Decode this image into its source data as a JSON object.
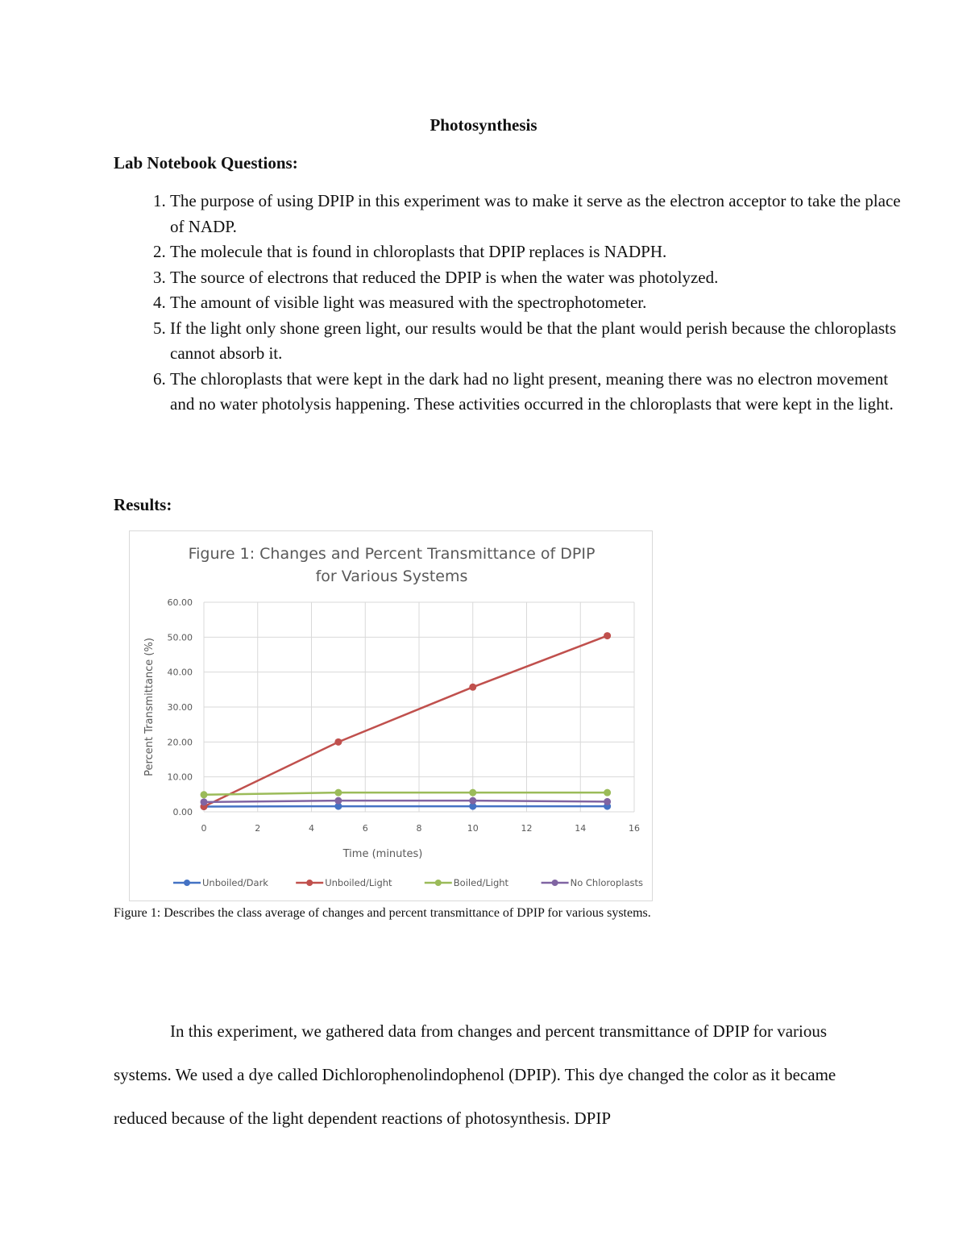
{
  "title": "Photosynthesis",
  "questions_heading": "Lab Notebook Questions:",
  "questions": [
    "The purpose of using DPIP in this experiment was to make it serve as the electron acceptor to take the place of NADP.",
    "The molecule that is found in chloroplasts that DPIP replaces is NADPH.",
    "The source of electrons that reduced the DPIP is when the water was photolyzed.",
    "The amount of visible light was measured with the spectrophotometer.",
    "If the light only shone green light, our results would be that the plant would perish because the chloroplasts cannot absorb it.",
    "The chloroplasts that were kept in the dark had no light present, meaning there was no electron movement and no water photolysis happening. These activities occurred in the chloroplasts that were kept in the light."
  ],
  "results_heading": "Results:",
  "chart_data": {
    "type": "line",
    "title": "Figure 1: Changes and Percent Transmittance of DPIP for Various Systems",
    "title_lines": [
      "Figure 1: Changes and Percent Transmittance of DPIP",
      "for Various Systems"
    ],
    "xlabel": "Time (minutes)",
    "ylabel": "Percent Transmittance (%)",
    "xlim": [
      0,
      16
    ],
    "ylim": [
      0,
      60
    ],
    "xticks": [
      "0",
      "2",
      "4",
      "6",
      "8",
      "10",
      "12",
      "14",
      "16"
    ],
    "yticks": [
      "0.00",
      "10.00",
      "20.00",
      "30.00",
      "40.00",
      "50.00",
      "60.00"
    ],
    "grid": true,
    "legend": "bottom",
    "x": [
      0,
      5,
      10,
      15
    ],
    "series": [
      {
        "name": "Unboiled/Dark",
        "color": "#4472c4",
        "values": [
          1.5,
          1.6,
          1.6,
          1.6
        ]
      },
      {
        "name": "Unboiled/Light",
        "color": "#c0504d",
        "values": [
          1.5,
          20.0,
          35.7,
          50.4
        ]
      },
      {
        "name": "Boiled/Light",
        "color": "#9bbb59",
        "values": [
          4.9,
          5.5,
          5.5,
          5.5
        ]
      },
      {
        "name": "No Chloroplasts",
        "color": "#8064a2",
        "values": [
          2.8,
          3.2,
          3.2,
          2.9
        ]
      }
    ]
  },
  "caption": "Figure 1: Describes the class average of changes and percent transmittance of DPIP for various systems.",
  "paragraph": "In this experiment, we gathered data from changes and percent transmittance of DPIP for various systems. We used a dye called Dichlorophenolindophenol (DPIP). This dye changed the color as it became reduced because of the light dependent reactions of photosynthesis. DPIP"
}
